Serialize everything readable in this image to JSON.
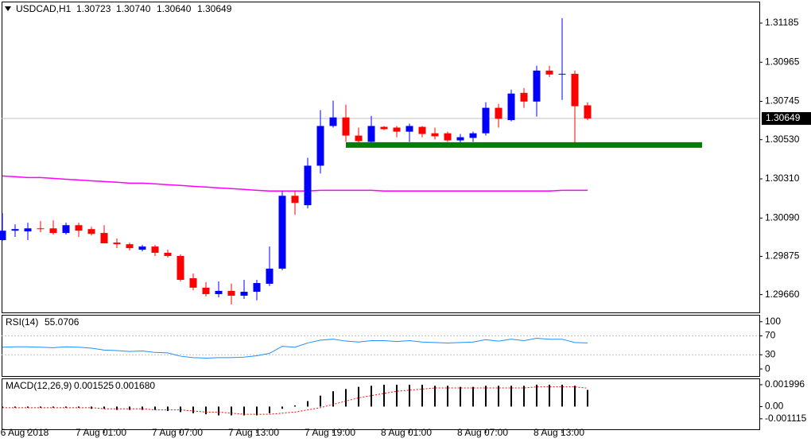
{
  "chart_data": [
    {
      "type": "candlestick",
      "title": "USDCAD,H1",
      "categories": [
        null,
        null,
        "6 Aug 2018",
        null,
        null,
        null,
        null,
        null,
        "7 Aug 01:00",
        null,
        null,
        null,
        null,
        null,
        "7 Aug 07:00",
        null,
        null,
        null,
        null,
        null,
        "7 Aug 13:00",
        null,
        null,
        null,
        null,
        null,
        "7 Aug 19:00",
        null,
        null,
        null,
        null,
        null,
        "8 Aug 01:00",
        null,
        null,
        null,
        null,
        null,
        "8 Aug 07:00",
        null,
        null,
        null,
        null,
        null,
        "8 Aug 13:00",
        null,
        null
      ],
      "open": [
        1.29966,
        1.30019,
        1.30015,
        1.30032,
        1.30032,
        1.30006,
        1.3005,
        1.30028,
        1.30006,
        1.29952,
        1.29943,
        1.29912,
        1.2993,
        1.29895,
        1.29877,
        1.29752,
        1.29699,
        1.29663,
        1.29681,
        1.29654,
        1.29676,
        1.29721,
        1.29806,
        1.30215,
        1.30162,
        1.30384,
        1.30607,
        1.30655,
        1.30553,
        1.30518,
        1.30602,
        1.30598,
        1.30575,
        1.30602,
        1.30566,
        1.30566,
        1.30526,
        1.3054,
        1.30566,
        1.30709,
        1.3064,
        1.30793,
        1.30744,
        1.30918,
        1.30896,
        1.309,
        1.30723
      ],
      "high": [
        1.30117,
        1.30055,
        1.30064,
        1.30073,
        1.30077,
        1.30064,
        1.30064,
        1.30041,
        1.3005,
        1.29975,
        1.29952,
        1.29939,
        1.29939,
        1.29912,
        1.29886,
        1.29779,
        1.2973,
        1.29734,
        1.29721,
        1.29743,
        1.29743,
        1.2993,
        1.30242,
        1.30242,
        1.30429,
        1.30696,
        1.30749,
        1.30727,
        1.30598,
        1.30664,
        1.30607,
        1.30607,
        1.3062,
        1.30607,
        1.30598,
        1.30575,
        1.30562,
        1.30575,
        1.3074,
        1.30731,
        1.30811,
        1.3082,
        1.30945,
        1.30945,
        1.31212,
        1.30918,
        1.3074
      ],
      "low": [
        1.29961,
        1.29984,
        1.29966,
        1.3001,
        1.29997,
        1.29997,
        1.29984,
        1.29992,
        1.29948,
        1.29921,
        1.29908,
        1.29903,
        1.29877,
        1.29868,
        1.29734,
        1.29685,
        1.2965,
        1.29645,
        1.29605,
        1.29636,
        1.29628,
        1.29708,
        1.29797,
        1.30108,
        1.30144,
        1.3034,
        1.30598,
        1.30518,
        1.30509,
        1.30509,
        1.30584,
        1.30544,
        1.30518,
        1.30544,
        1.30531,
        1.30518,
        1.30509,
        1.30518,
        1.30553,
        1.30598,
        1.30633,
        1.30709,
        1.3066,
        1.30882,
        1.30753,
        1.305,
        1.3064
      ],
      "close": [
        1.30019,
        1.30028,
        1.30032,
        1.30028,
        1.30006,
        1.3005,
        1.30019,
        1.30001,
        1.29948,
        1.29943,
        1.29921,
        1.2993,
        1.29895,
        1.29877,
        1.29743,
        1.29699,
        1.29663,
        1.29681,
        1.29654,
        1.29676,
        1.29725,
        1.29806,
        1.30215,
        1.30175,
        1.30384,
        1.30607,
        1.30655,
        1.30553,
        1.30522,
        1.30607,
        1.30589,
        1.30575,
        1.30607,
        1.30562,
        1.30549,
        1.30526,
        1.30544,
        1.30566,
        1.30709,
        1.30647,
        1.30789,
        1.30744,
        1.30918,
        1.30896,
        1.309,
        1.30718,
        1.30649
      ],
      "value_labels": {
        "high": {
          "46": "1.30740"
        },
        "low": {
          "46": "1.30640"
        }
      },
      "up_color": "#0000ff",
      "down_color": "#ff0000",
      "ylim": [
        1.2956,
        1.31301
      ],
      "yticks": [
        1.31185,
        1.30965,
        1.30745,
        {
          "value": 1.3053,
          "label": "1.30530"
        },
        {
          "value": 1.3031,
          "label": "1.30310"
        },
        {
          "value": 1.3009,
          "label": "1.30090"
        },
        1.29875,
        {
          "value": 1.2966,
          "label": "1.29660"
        }
      ],
      "overlays": [
        {
          "type": "line",
          "color": "#ff00ff",
          "values": [
            1.30326,
            1.30322,
            1.30317,
            1.30317,
            1.30313,
            1.30308,
            1.30304,
            1.30299,
            1.30295,
            1.30291,
            1.30286,
            1.30286,
            1.30282,
            1.30277,
            1.30273,
            1.30268,
            1.30264,
            1.30259,
            1.30255,
            1.30251,
            1.30246,
            1.30242,
            1.30242,
            1.30242,
            1.30242,
            1.30246,
            1.30246,
            1.30246,
            1.30246,
            1.30246,
            1.30242,
            1.30242,
            1.30242,
            1.30242,
            1.30242,
            1.30242,
            1.30242,
            1.30242,
            1.30242,
            1.30242,
            1.30242,
            1.30242,
            1.30242,
            1.30242,
            1.30246,
            1.30246,
            1.30246
          ]
        }
      ],
      "level_lines": [
        {
          "value": 1.305,
          "color": "#008000"
        }
      ]
    },
    {
      "type": "line",
      "name": "RSI(14)",
      "color": "#1e90ff",
      "values": [
        46,
        47,
        47,
        46,
        45,
        47,
        46,
        44,
        40,
        39,
        37,
        38,
        35,
        34,
        27,
        24,
        23,
        24,
        24,
        25,
        28,
        33,
        48,
        46,
        55,
        61,
        63,
        59,
        57,
        60,
        60,
        58,
        60,
        57,
        56,
        55,
        56,
        57,
        62,
        59,
        63,
        60,
        65,
        63,
        63,
        56,
        55.0706
      ],
      "ylim": [
        -15,
        113
      ],
      "yticks": [
        100,
        70,
        30,
        0
      ],
      "levels": [
        70,
        30
      ]
    },
    {
      "type": "macd",
      "name": "MACD(12,26,9)",
      "ylim": [
        -0.00207,
        0.0025
      ],
      "yticks": [
        0.001996,
        {
          "value": 0,
          "label": "0.00"
        },
        -0.001115
      ],
      "series": [
        {
          "type": "bar",
          "color": "#000000",
          "values": [
            -0.0001,
            -0.0001,
            -0.0001,
            -0.0001,
            -0.0001,
            -0.0001,
            -0.0001,
            -0.0002,
            -0.0002,
            -0.0003,
            -0.0003,
            -0.0003,
            -0.0003,
            -0.0004,
            -0.0005,
            -0.0006,
            -0.0007,
            -0.0008,
            -0.0008,
            -0.0008,
            -0.0008,
            -0.0006,
            -0.0002,
            0.0001,
            0.0005,
            0.001,
            0.0014,
            0.0016,
            0.0018,
            0.0019,
            0.002,
            0.002,
            0.002,
            0.002,
            0.0019,
            0.0019,
            0.0018,
            0.0018,
            0.0019,
            0.0019,
            0.0019,
            0.0019,
            0.002,
            0.002,
            0.002,
            0.0019,
            0.001525
          ]
        },
        {
          "type": "line",
          "color": "#ff0000",
          "values": [
            -0.0001,
            -0.0001,
            -0.0001,
            -0.0001,
            -0.0001,
            -0.0001,
            -0.0001,
            -0.0001,
            -0.0002,
            -0.0002,
            -0.0002,
            -0.0002,
            -0.0003,
            -0.0003,
            -0.0003,
            -0.0004,
            -0.0005,
            -0.0005,
            -0.0006,
            -0.0007,
            -0.0007,
            -0.0007,
            -0.0006,
            -0.0005,
            -0.0003,
            -0.0001,
            0.0002,
            0.0005,
            0.0008,
            0.001,
            0.0012,
            0.0014,
            0.0015,
            0.0016,
            0.0017,
            0.0017,
            0.0017,
            0.0017,
            0.0017,
            0.0017,
            0.0017,
            0.0017,
            0.0018,
            0.0018,
            0.0018,
            0.0018,
            0.00168
          ],
          "value_labels": {
            "46": "0.001680"
          }
        }
      ]
    }
  ]
}
